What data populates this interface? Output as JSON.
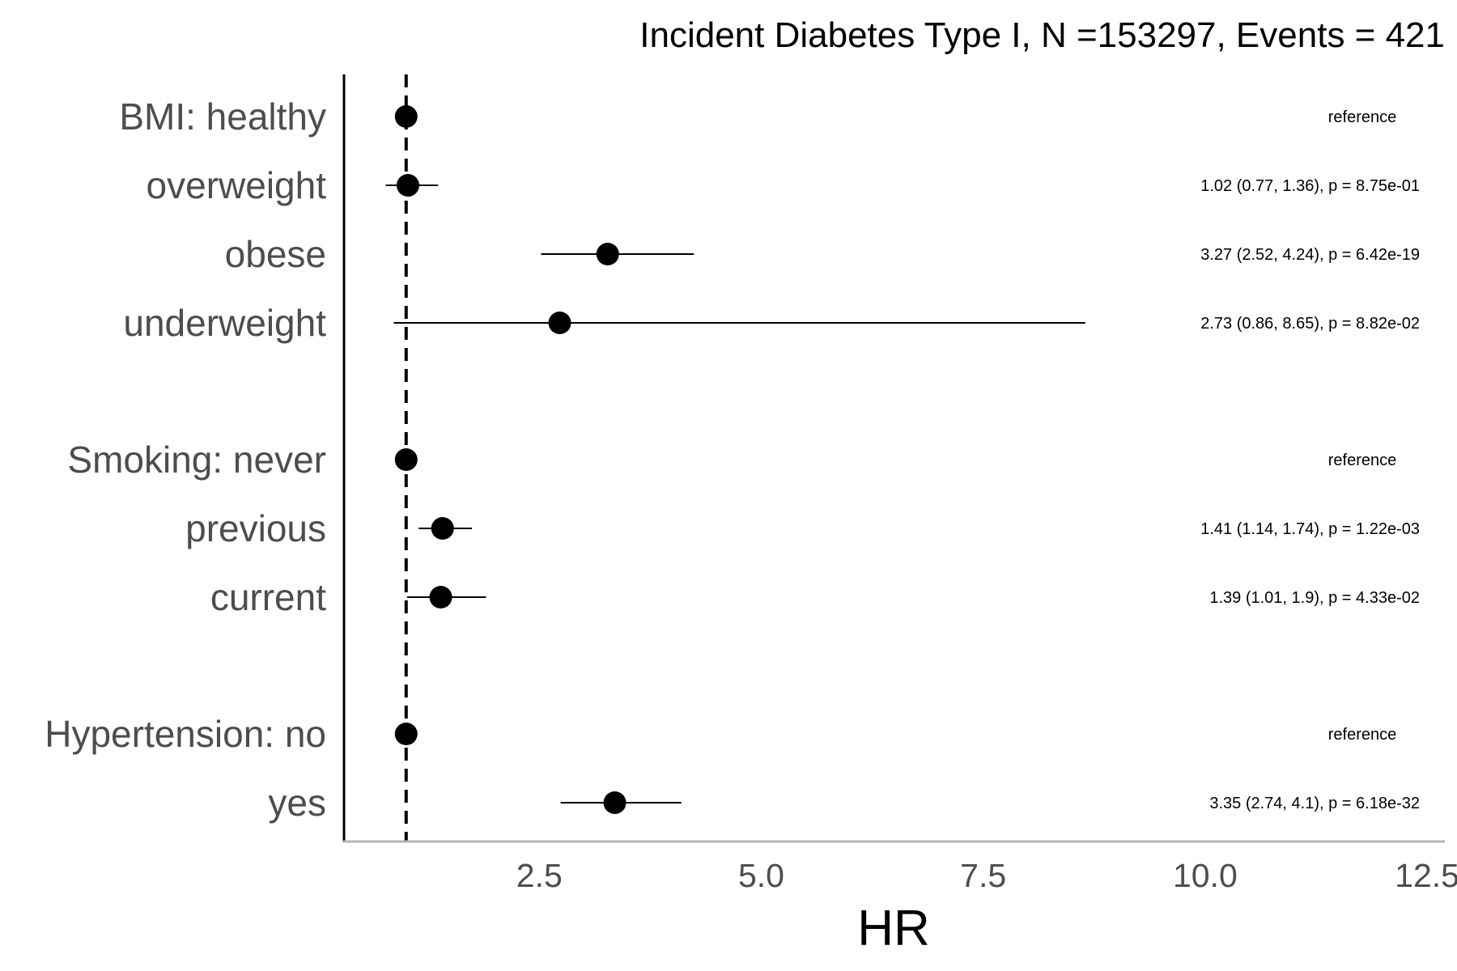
{
  "chart_data": {
    "type": "forest",
    "title": "Incident Diabetes Type I, N =153297, Events = 421",
    "xlabel": "HR",
    "xlim": [
      0.3,
      12.7
    ],
    "xticks": [
      2.5,
      5.0,
      7.5,
      10.0,
      12.5
    ],
    "xtick_labels": [
      "2.5",
      "5.0",
      "7.5",
      "10.0",
      "12.5"
    ],
    "reference_line": 1,
    "rows": [
      {
        "label": "BMI: healthy",
        "hr": 1.0,
        "lower": null,
        "upper": null,
        "annotation": "reference"
      },
      {
        "label": "overweight",
        "hr": 1.02,
        "lower": 0.77,
        "upper": 1.36,
        "annotation": "1.02 (0.77, 1.36), p = 8.75e-01"
      },
      {
        "label": "obese",
        "hr": 3.27,
        "lower": 2.52,
        "upper": 4.24,
        "annotation": "3.27 (2.52, 4.24), p = 6.42e-19"
      },
      {
        "label": "underweight",
        "hr": 2.73,
        "lower": 0.86,
        "upper": 8.65,
        "annotation": "2.73 (0.86, 8.65), p = 8.82e-02"
      },
      {
        "label": "Smoking: never",
        "hr": 1.0,
        "lower": null,
        "upper": null,
        "annotation": "reference"
      },
      {
        "label": "previous",
        "hr": 1.41,
        "lower": 1.14,
        "upper": 1.74,
        "annotation": "1.41 (1.14, 1.74), p = 1.22e-03"
      },
      {
        "label": "current",
        "hr": 1.39,
        "lower": 1.01,
        "upper": 1.9,
        "annotation": "1.39 (1.01, 1.9), p = 4.33e-02"
      },
      {
        "label": "Hypertension: no",
        "hr": 1.0,
        "lower": null,
        "upper": null,
        "annotation": "reference"
      },
      {
        "label": "yes",
        "hr": 3.35,
        "lower": 2.74,
        "upper": 4.1,
        "annotation": "3.35 (2.74, 4.1), p = 6.18e-32"
      }
    ],
    "grid": false
  }
}
